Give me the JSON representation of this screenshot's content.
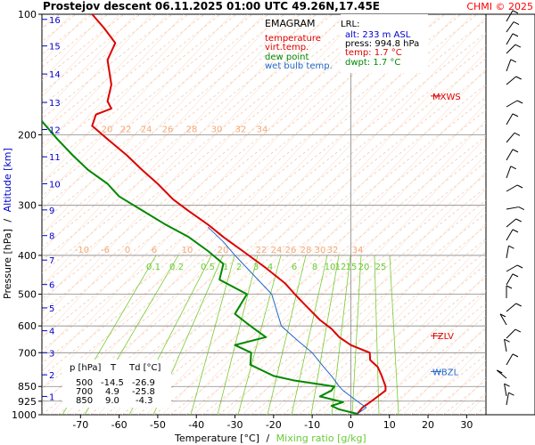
{
  "header": {
    "title": "Prostejov   descent   06.11.2025 01:00 UTC  49.26N,17.45E",
    "copyright": "CHMI © 2025"
  },
  "legend": {
    "title": "EMAGRAM",
    "items": [
      {
        "label": "temperature",
        "color": "#dd0000"
      },
      {
        "label": "virt.temp.",
        "color": "#dd0000"
      },
      {
        "label": "dew point",
        "color": "#008800"
      },
      {
        "label": "wet bulb temp.",
        "color": "#2266cc"
      }
    ]
  },
  "lrl": {
    "title": "LRL:",
    "rows": [
      {
        "label": "alt: 233 m ASL",
        "color": "#0000cc"
      },
      {
        "label": "press: 994.8 hPa",
        "color": "#000000"
      },
      {
        "label": "temp: 1.7 °C",
        "color": "#dd0000"
      },
      {
        "label": "dwpt: 1.7 °C",
        "color": "#008800"
      }
    ]
  },
  "table": {
    "headers": [
      "p [hPa]",
      "T",
      "Td [°C]"
    ],
    "rows": [
      [
        "500",
        "-14.5",
        "-26.9"
      ],
      [
        "700",
        "4.9",
        "-25.8"
      ],
      [
        "850",
        "9.0",
        "-4.3"
      ]
    ]
  },
  "level_markers": [
    {
      "label": "MXWS",
      "pressure": 160,
      "color": "#dd0000"
    },
    {
      "label": "FZLV",
      "pressure": 635,
      "color": "#dd0000"
    },
    {
      "label": "WBZL",
      "pressure": 780,
      "color": "#2266cc"
    }
  ],
  "chart_data": {
    "type": "line",
    "title": "",
    "xlabel": "Temperature [°C]",
    "xlabel_sep": "/",
    "xlabel2": "Mixing ratio [g/kg]",
    "ylabel": "Pressure [hPa]",
    "ylabel_sep": "/",
    "ylabel2": "Altitude [km]",
    "xlim": [
      -80,
      35
    ],
    "ylim": [
      1000,
      100
    ],
    "y_scale": "log",
    "x_ticks": [
      -70,
      -60,
      -50,
      -40,
      -30,
      -20,
      -10,
      0,
      10,
      20,
      30
    ],
    "y_ticks": [
      100,
      200,
      300,
      400,
      500,
      600,
      700,
      850,
      925,
      1000
    ],
    "altitude_ticks": [
      {
        "km": 1,
        "p": 900
      },
      {
        "km": 2,
        "p": 795
      },
      {
        "km": 3,
        "p": 700
      },
      {
        "km": 4,
        "p": 617
      },
      {
        "km": 5,
        "p": 541
      },
      {
        "km": 6,
        "p": 473
      },
      {
        "km": 7,
        "p": 411
      },
      {
        "km": 8,
        "p": 357
      },
      {
        "km": 9,
        "p": 308
      },
      {
        "km": 10,
        "p": 265
      },
      {
        "km": 11,
        "p": 227
      },
      {
        "km": 12,
        "p": 194
      },
      {
        "km": 13,
        "p": 166
      },
      {
        "km": 14,
        "p": 141
      },
      {
        "km": 15,
        "p": 120
      },
      {
        "km": 16,
        "p": 103
      }
    ],
    "dry_adiabat_labels_200": [
      "20",
      "22",
      "24",
      "26",
      "28",
      "30",
      "32",
      "34"
    ],
    "dry_adiabat_labels_400": [
      "-10",
      "-6",
      "0",
      "6",
      "10",
      "20",
      "22",
      "24",
      "26",
      "28",
      "30",
      "32",
      "34"
    ],
    "mixing_ratio_labels": [
      "0.1",
      "0.2",
      "0.5",
      "1",
      "2",
      "3",
      "4",
      "6",
      "8",
      "10",
      "12",
      "15",
      "20",
      "25"
    ],
    "series": [
      {
        "name": "temperature",
        "color": "#dd0000",
        "points": [
          [
            1.7,
            994.8
          ],
          [
            3,
            960
          ],
          [
            5,
            930
          ],
          [
            7,
            900
          ],
          [
            9,
            870
          ],
          [
            9,
            850
          ],
          [
            8,
            800
          ],
          [
            7,
            760
          ],
          [
            5,
            730
          ],
          [
            4.9,
            700
          ],
          [
            0,
            670
          ],
          [
            -3,
            640
          ],
          [
            -5,
            610
          ],
          [
            -8,
            580
          ],
          [
            -12,
            530
          ],
          [
            -14.5,
            500
          ],
          [
            -17,
            470
          ],
          [
            -22,
            430
          ],
          [
            -28,
            390
          ],
          [
            -33,
            360
          ],
          [
            -37,
            335
          ],
          [
            -42,
            310
          ],
          [
            -46,
            290
          ],
          [
            -50,
            265
          ],
          [
            -54,
            245
          ],
          [
            -58,
            225
          ],
          [
            -63,
            205
          ],
          [
            -67,
            190
          ],
          [
            -66,
            178
          ],
          [
            -62,
            172
          ],
          [
            -63,
            165
          ],
          [
            -62,
            150
          ],
          [
            -63,
            130
          ],
          [
            -61,
            118
          ],
          [
            -64,
            108
          ],
          [
            -67,
            100
          ]
        ]
      },
      {
        "name": "dew point",
        "color": "#008800",
        "points": [
          [
            1.7,
            994.8
          ],
          [
            -3,
            970
          ],
          [
            -5,
            950
          ],
          [
            -2,
            930
          ],
          [
            -8,
            900
          ],
          [
            -5,
            870
          ],
          [
            -4.3,
            850
          ],
          [
            -15,
            820
          ],
          [
            -20,
            800
          ],
          [
            -26,
            750
          ],
          [
            -25.8,
            700
          ],
          [
            -30,
            670
          ],
          [
            -22,
            640
          ],
          [
            -25,
            610
          ],
          [
            -27,
            590
          ],
          [
            -30,
            560
          ],
          [
            -26.9,
            500
          ],
          [
            -34,
            460
          ],
          [
            -33,
            420
          ],
          [
            -37,
            390
          ],
          [
            -42,
            360
          ],
          [
            -48,
            335
          ],
          [
            -55,
            305
          ],
          [
            -60,
            285
          ],
          [
            -63,
            265
          ],
          [
            -68,
            245
          ],
          [
            -72,
            225
          ],
          [
            -76,
            205
          ],
          [
            -80,
            185
          ]
        ]
      },
      {
        "name": "wet bulb temp.",
        "color": "#2266cc",
        "points": [
          [
            1.7,
            994.8
          ],
          [
            4,
            960
          ],
          [
            2,
            930
          ],
          [
            0,
            900
          ],
          [
            -2,
            870
          ],
          [
            -3,
            850
          ],
          [
            -5,
            800
          ],
          [
            -7,
            760
          ],
          [
            -10,
            700
          ],
          [
            -14,
            650
          ],
          [
            -18,
            600
          ],
          [
            -20.5,
            500
          ],
          [
            -25,
            450
          ],
          [
            -30,
            400
          ],
          [
            -33,
            370
          ],
          [
            -37,
            340
          ]
        ]
      }
    ]
  }
}
